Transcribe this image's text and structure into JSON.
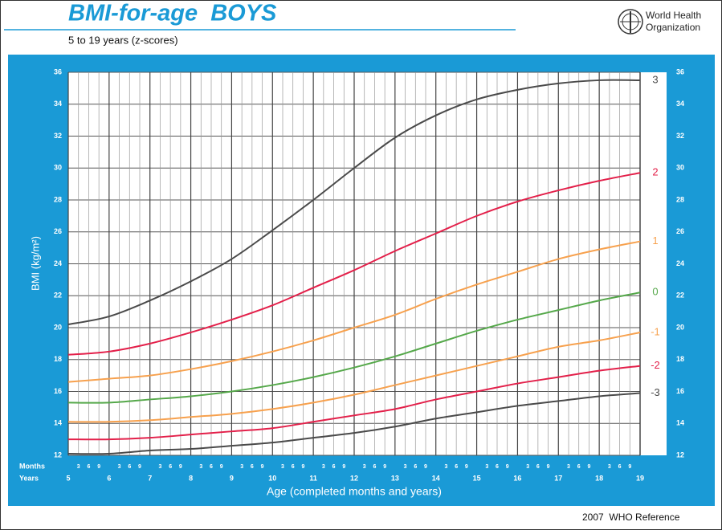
{
  "header": {
    "organization": [
      "World Health",
      "Organization"
    ]
  },
  "footer": "2007  WHO Reference",
  "chart_data": {
    "type": "line",
    "title": "BMI-for-age  BOYS",
    "subtitle": "5 to 19 years (z-scores)",
    "y_label": "BMI (kg/m²)",
    "x_label": "Age (completed months and years)",
    "x_row_labels": [
      "Months",
      "Years"
    ],
    "month_ticks": [
      3,
      6,
      9
    ],
    "x": [
      5,
      6,
      7,
      8,
      9,
      10,
      11,
      12,
      13,
      14,
      15,
      16,
      17,
      18,
      19
    ],
    "xlim": [
      5,
      19
    ],
    "xticks": [
      5,
      6,
      7,
      8,
      9,
      10,
      11,
      12,
      13,
      14,
      15,
      16,
      17,
      18,
      19
    ],
    "ylim": [
      12,
      36
    ],
    "yticks": [
      12,
      14,
      16,
      18,
      20,
      22,
      24,
      26,
      28,
      30,
      32,
      34,
      36
    ],
    "grid": true,
    "series": [
      {
        "name": "3",
        "color": "#4a4a4a",
        "values": [
          20.2,
          20.7,
          21.7,
          22.9,
          24.3,
          26.1,
          28.0,
          30.0,
          31.9,
          33.3,
          34.3,
          34.9,
          35.3,
          35.5,
          35.5
        ]
      },
      {
        "name": "2",
        "color": "#e3204a",
        "values": [
          18.3,
          18.5,
          19.0,
          19.7,
          20.5,
          21.4,
          22.5,
          23.6,
          24.8,
          25.9,
          27.0,
          27.9,
          28.6,
          29.2,
          29.7
        ]
      },
      {
        "name": "1",
        "color": "#f7a14e",
        "values": [
          16.6,
          16.8,
          17.0,
          17.4,
          17.9,
          18.5,
          19.2,
          20.0,
          20.8,
          21.8,
          22.7,
          23.5,
          24.3,
          24.9,
          25.4
        ]
      },
      {
        "name": "0",
        "color": "#55a84a",
        "values": [
          15.3,
          15.3,
          15.5,
          15.7,
          16.0,
          16.4,
          16.9,
          17.5,
          18.2,
          19.0,
          19.8,
          20.5,
          21.1,
          21.7,
          22.2
        ]
      },
      {
        "name": "-1",
        "color": "#f7a14e",
        "values": [
          14.1,
          14.1,
          14.2,
          14.4,
          14.6,
          14.9,
          15.3,
          15.8,
          16.4,
          17.0,
          17.6,
          18.2,
          18.8,
          19.2,
          19.7
        ]
      },
      {
        "name": "-2",
        "color": "#e3204a",
        "values": [
          13.0,
          13.0,
          13.1,
          13.3,
          13.5,
          13.7,
          14.1,
          14.5,
          14.9,
          15.5,
          16.0,
          16.5,
          16.9,
          17.3,
          17.6
        ]
      },
      {
        "name": "-3",
        "color": "#4a4a4a",
        "values": [
          12.1,
          12.1,
          12.3,
          12.4,
          12.6,
          12.8,
          13.1,
          13.4,
          13.8,
          14.3,
          14.7,
          15.1,
          15.4,
          15.7,
          15.9
        ]
      }
    ]
  }
}
